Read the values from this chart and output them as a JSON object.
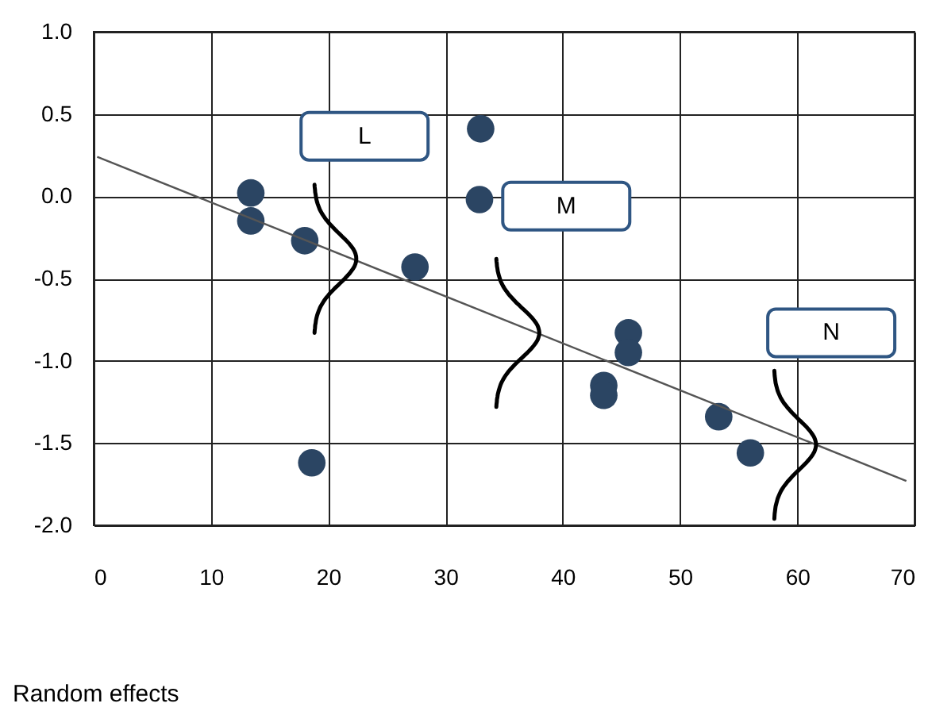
{
  "chart_data": {
    "type": "scatter",
    "xlim": [
      0,
      70
    ],
    "xticks": [
      0,
      10,
      20,
      30,
      40,
      50,
      60,
      70
    ],
    "ylim": [
      -2,
      1
    ],
    "yticks": [
      {
        "value": -2,
        "label": "-2.0"
      },
      {
        "value": -1.5,
        "label": "-1.5"
      },
      {
        "value": -1,
        "label": "-1.0"
      },
      {
        "value": -0.5,
        "label": "-0.5"
      },
      {
        "value": 0,
        "label": "0.0"
      },
      {
        "value": 0.5,
        "label": "0.5"
      },
      {
        "value": 1,
        "label": "1.0"
      }
    ],
    "grid": true,
    "series": [
      {
        "type": "scatter",
        "marker": "circle",
        "color": "#2b4563",
        "x": [
          13.4,
          13.4,
          18.0,
          18.6,
          27.4,
          33.0,
          32.9,
          43.5,
          43.5,
          45.6,
          45.6,
          53.3,
          56.0
        ],
        "values": [
          0.02,
          -0.15,
          -0.27,
          -1.62,
          -0.43,
          0.41,
          -0.02,
          -1.15,
          -1.21,
          -0.83,
          -0.95,
          -1.34,
          -1.56
        ]
      },
      {
        "type": "line",
        "color": "#555555",
        "x": [
          0.3,
          69.3
        ],
        "values": [
          0.24,
          -1.73
        ]
      }
    ],
    "annotations": [
      "L",
      "M",
      "N",
      "Random effects"
    ]
  }
}
